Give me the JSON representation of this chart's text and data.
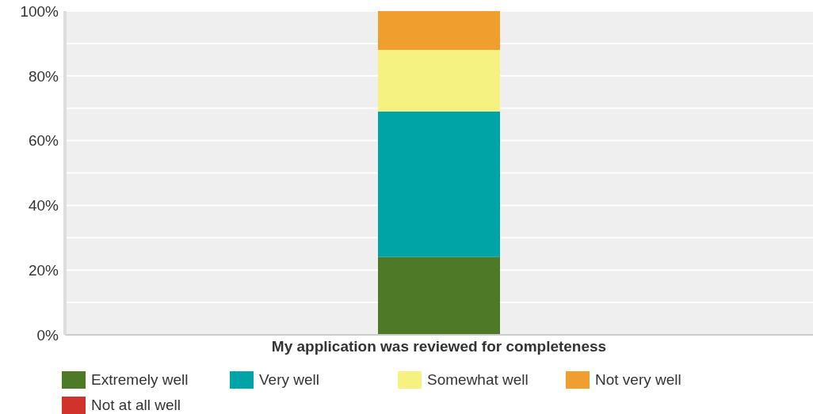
{
  "chart_data": {
    "type": "bar",
    "stacked": true,
    "categories": [
      "My application was reviewed for completeness"
    ],
    "series": [
      {
        "name": "Extremely well",
        "color": "#4e7a28",
        "values": [
          24
        ]
      },
      {
        "name": "Very well",
        "color": "#00a3a6",
        "values": [
          45
        ]
      },
      {
        "name": "Somewhat well",
        "color": "#f6f282",
        "values": [
          19
        ]
      },
      {
        "name": "Not very well",
        "color": "#f09e2e",
        "values": [
          12
        ]
      },
      {
        "name": "Not at all well",
        "color": "#d1322b",
        "values": [
          0
        ]
      }
    ],
    "ylim": [
      0,
      100
    ],
    "yticks": [
      {
        "value": 0,
        "label": "0%"
      },
      {
        "value": 10,
        "label": null
      },
      {
        "value": 20,
        "label": "20%"
      },
      {
        "value": 30,
        "label": null
      },
      {
        "value": 40,
        "label": "40%"
      },
      {
        "value": 50,
        "label": null
      },
      {
        "value": 60,
        "label": "60%"
      },
      {
        "value": 70,
        "label": null
      },
      {
        "value": 80,
        "label": "80%"
      },
      {
        "value": 90,
        "label": null
      },
      {
        "value": 100,
        "label": "100%"
      }
    ],
    "grid": "y",
    "legend": "bottom"
  }
}
